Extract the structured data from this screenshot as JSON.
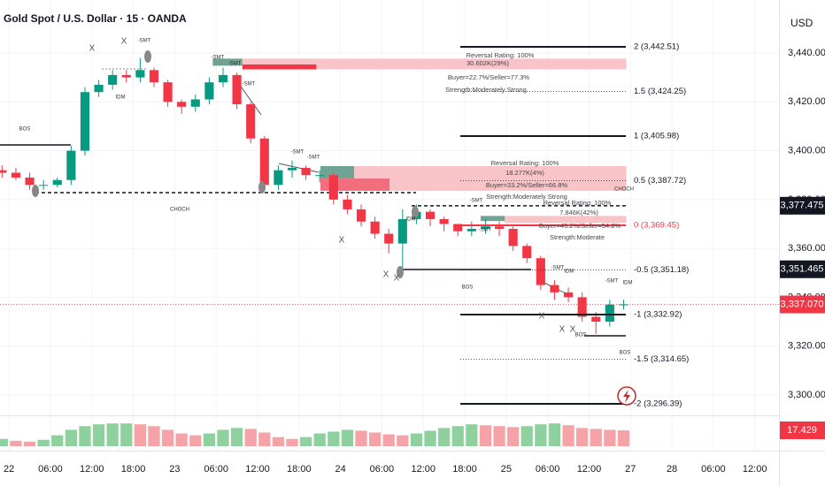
{
  "title": "Gold Spot / U.S. Dollar · 15 · OANDA",
  "currency": "USD",
  "chart_data": {
    "type": "candlestick",
    "x": [
      -1,
      1,
      3,
      5,
      7,
      9,
      11,
      13,
      15,
      17,
      19,
      21,
      23,
      25,
      27,
      29,
      31,
      33,
      35,
      37,
      39,
      41,
      43,
      45,
      47,
      49,
      51,
      53,
      55,
      57,
      59,
      61,
      63,
      65,
      67,
      69,
      71,
      73,
      75,
      77,
      79,
      81,
      83,
      85,
      87,
      89
    ],
    "open": [
      3392,
      3391,
      3389,
      3386,
      3386,
      3388,
      3400,
      3424,
      3427,
      3431,
      3430,
      3433,
      3428,
      3420,
      3418,
      3421,
      3428,
      3431,
      3419,
      3405,
      3386,
      3392,
      3393,
      3390,
      3390,
      3380,
      3376,
      3371,
      3366,
      3362,
      3372,
      3375,
      3372,
      3370,
      3367,
      3368,
      3369,
      3368,
      3361,
      3356,
      3345,
      3342,
      3340,
      3332,
      3330,
      3337
    ],
    "high": [
      3394,
      3393,
      3391,
      3388,
      3389,
      3402,
      3426,
      3429,
      3433,
      3433,
      3438,
      3434,
      3429,
      3421,
      3423,
      3430,
      3434,
      3432,
      3420,
      3406,
      3394,
      3396,
      3394,
      3392,
      3391,
      3382,
      3378,
      3373,
      3368,
      3376,
      3378,
      3376,
      3373,
      3370,
      3371,
      3372,
      3371,
      3369,
      3362,
      3357,
      3347,
      3344,
      3342,
      3334,
      3339,
      3339
    ],
    "low": [
      3389,
      3388,
      3384,
      3384,
      3385,
      3386,
      3398,
      3422,
      3425,
      3428,
      3428,
      3426,
      3418,
      3415,
      3416,
      3419,
      3426,
      3417,
      3403,
      3384,
      3384,
      3389,
      3388,
      3387,
      3378,
      3374,
      3369,
      3364,
      3358,
      3350,
      3370,
      3369,
      3367,
      3365,
      3365,
      3366,
      3365,
      3359,
      3354,
      3343,
      3339,
      3338,
      3330,
      3325,
      3328,
      3335
    ],
    "close": [
      3391,
      3389,
      3386,
      3386,
      3388,
      3400,
      3424,
      3427,
      3431,
      3430,
      3433,
      3428,
      3420,
      3418,
      3421,
      3428,
      3431,
      3419,
      3405,
      3386,
      3392,
      3393,
      3390,
      3390,
      3380,
      3376,
      3371,
      3366,
      3362,
      3372,
      3375,
      3372,
      3370,
      3367,
      3368,
      3369,
      3368,
      3361,
      3356,
      3345,
      3342,
      3340,
      3332,
      3330,
      3337,
      3337.07
    ],
    "up_color": "#089981",
    "down_color": "#f23645",
    "xlim": [
      -1.3,
      111.5
    ],
    "xticks": [
      {
        "value": 0,
        "label": "22"
      },
      {
        "value": 6,
        "label": "06:00"
      },
      {
        "value": 12,
        "label": "12:00"
      },
      {
        "value": 18,
        "label": "18:00"
      },
      {
        "value": 24,
        "label": "23"
      },
      {
        "value": 30,
        "label": "06:00"
      },
      {
        "value": 36,
        "label": "12:00"
      },
      {
        "value": 42,
        "label": "18:00"
      },
      {
        "value": 48,
        "label": "24"
      },
      {
        "value": 54,
        "label": "06:00"
      },
      {
        "value": 60,
        "label": "12:00"
      },
      {
        "value": 66,
        "label": "18:00"
      },
      {
        "value": 72,
        "label": "25"
      },
      {
        "value": 78,
        "label": "06:00"
      },
      {
        "value": 84,
        "label": "12:00"
      },
      {
        "value": 90,
        "label": "27"
      },
      {
        "value": 96,
        "label": "28"
      },
      {
        "value": 102,
        "label": "06:00"
      },
      {
        "value": 108,
        "label": "12:00"
      }
    ],
    "ylim": [
      3292.4,
      3461.7
    ],
    "yticks": [
      {
        "value": 3440,
        "label": "3,440.000"
      },
      {
        "value": 3420,
        "label": "3,420.000"
      },
      {
        "value": 3400,
        "label": "3,400.000"
      },
      {
        "value": 3380,
        "label": "3,380.000"
      },
      {
        "value": 3360,
        "label": "3,360.000"
      },
      {
        "value": 3340,
        "label": "3,340.000"
      },
      {
        "value": 3320,
        "label": "3,320.000"
      },
      {
        "value": 3300,
        "label": "3,300.000"
      }
    ],
    "grid": true,
    "price_labels": [
      {
        "value": 3377.475,
        "label": "3,377.475",
        "color": "#131722"
      },
      {
        "value": 3351.465,
        "label": "3,351.465",
        "color": "#131722"
      },
      {
        "value": 3337.07,
        "label": "3,337.070",
        "color": "#f23645"
      }
    ],
    "fib_levels": [
      {
        "value": 3442.51,
        "label": "2 (3,442.51)",
        "style": "solid",
        "color": "#131722"
      },
      {
        "value": 3424.25,
        "label": "1.5 (3,424.25)",
        "style": "dotted",
        "color": "#131722"
      },
      {
        "value": 3405.98,
        "label": "1 (3,405.98)",
        "style": "solid",
        "color": "#131722"
      },
      {
        "value": 3387.72,
        "label": "0.5 (3,387.72)",
        "style": "dotted",
        "color": "#131722"
      },
      {
        "value": 3369.45,
        "label": "0 (3,369.45)",
        "style": "solid",
        "color": "#f23645"
      },
      {
        "value": 3351.18,
        "label": "-0.5 (3,351.18)",
        "style": "dotted",
        "color": "#131722"
      },
      {
        "value": 3332.92,
        "label": "-1 (3,332.92)",
        "style": "solid",
        "color": "#131722"
      },
      {
        "value": 3314.65,
        "label": "-1.5 (3,314.65)",
        "style": "dotted",
        "color": "#131722"
      },
      {
        "value": 3296.39,
        "label": "-2 (3,296.39)",
        "style": "solid",
        "color": "#131722"
      }
    ],
    "zones": [
      {
        "x0": 29.5,
        "x1": 33.8,
        "top": 3437.7,
        "bottom": 3434.8,
        "color": "#6fa393"
      },
      {
        "x0": 33.8,
        "x1": 89.4,
        "top": 3437.7,
        "bottom": 3433.3,
        "color": "#f8c4c8"
      },
      {
        "x0": 33.8,
        "x1": 44.5,
        "top": 3435.3,
        "bottom": 3433.3,
        "color": "#f23645"
      },
      {
        "x0": 45.1,
        "x1": 50,
        "top": 3393.7,
        "bottom": 3388.6,
        "color": "#6fa393"
      },
      {
        "x0": 50,
        "x1": 89.4,
        "top": 3393.7,
        "bottom": 3383.6,
        "color": "#f8c4c8"
      },
      {
        "x0": 45.1,
        "x1": 55.1,
        "top": 3388.6,
        "bottom": 3383.6,
        "color": "#f26d7d"
      },
      {
        "x0": 68.3,
        "x1": 71.8,
        "top": 3373.3,
        "bottom": 3371.2,
        "color": "#6fa393"
      },
      {
        "x0": 71.8,
        "x1": 89.4,
        "top": 3373.3,
        "bottom": 3370.4,
        "color": "#f8c4c8"
      }
    ],
    "annotations": [
      "Reversal Rating: 100%",
      "30.602K(29%)",
      "Buyer=22.7%/Seller=77.3%",
      "Strength:Moderately Strong",
      "Reversal Rating: 100%",
      "18.277K(4%)",
      "Buyer=33.2%/Seller=66.8%",
      "Strength:Moderately Strong",
      "Reversal Rating: 100%",
      "7.846K(42%)",
      "Buyer=45.2%/Seller=54.8%",
      "Strength:Moderate",
      "BOS",
      "CHOCH",
      "BOS",
      "BOS",
      "BOS",
      "CHOCH",
      "IDM",
      "IDM",
      "IDM",
      "IDM",
      "-SMT",
      "-SMT",
      "-SMT",
      "-SMT",
      "-SMT",
      "-SMT",
      "-SMT",
      "-SMT",
      "-SMT",
      "-SMT",
      "X",
      "X",
      "X",
      "X",
      "X",
      "X",
      "X",
      "X"
    ],
    "oscillator": {
      "values": [
        8,
        6,
        5,
        7,
        12,
        18,
        22,
        24,
        25,
        25,
        24,
        22,
        18,
        14,
        12,
        14,
        18,
        20,
        19,
        15,
        10,
        8,
        10,
        14,
        16,
        18,
        17,
        15,
        13,
        12,
        14,
        17,
        20,
        22,
        24,
        23,
        22,
        21,
        22,
        24,
        25,
        23,
        20,
        19,
        18,
        17.429
      ],
      "ylim": [
        0,
        30
      ],
      "up_color": "#8fd19e",
      "down_color": "#f5a3a6"
    }
  }
}
